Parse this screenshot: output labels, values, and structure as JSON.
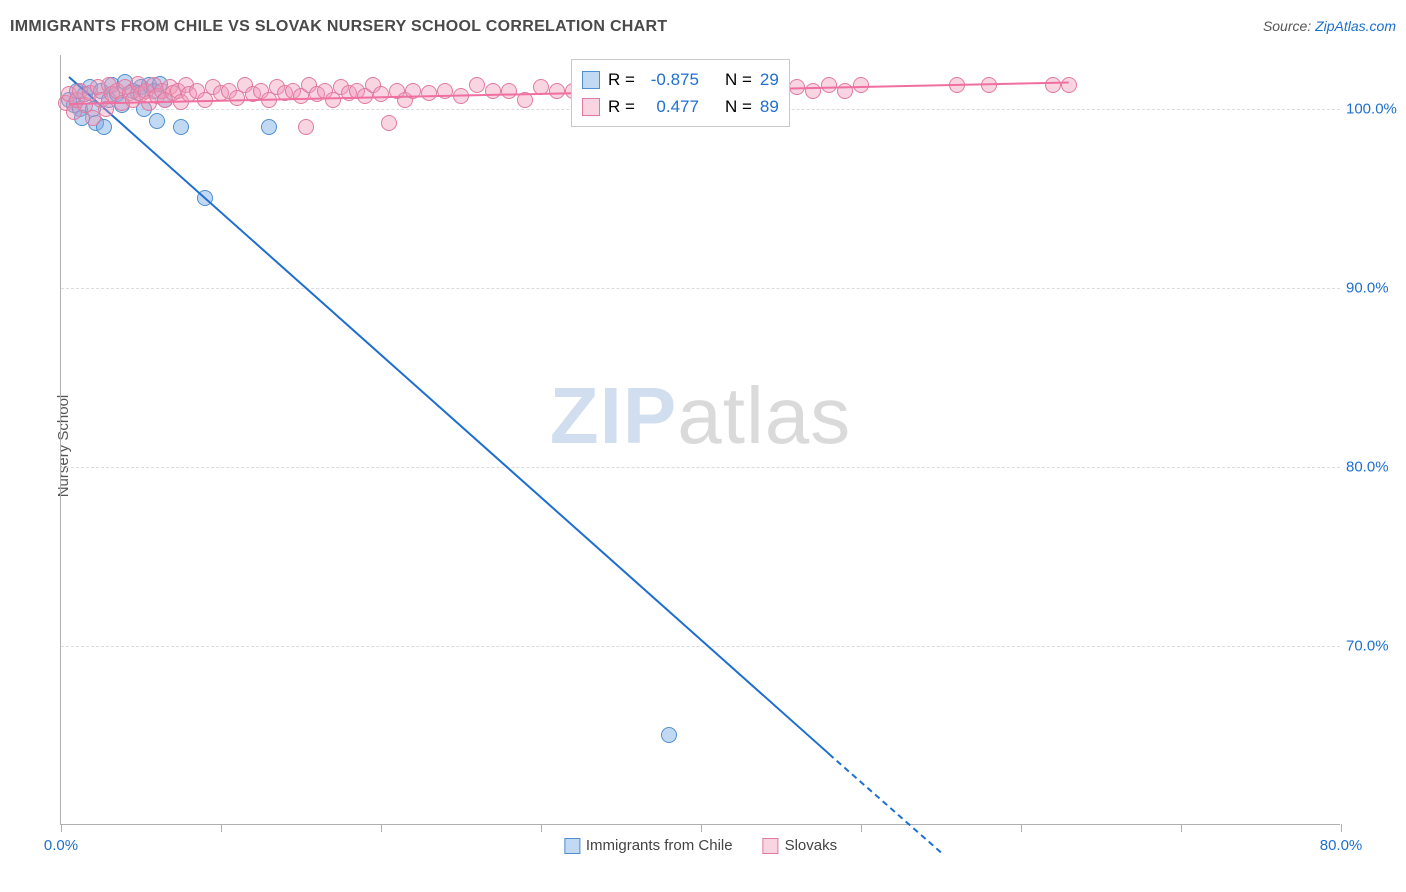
{
  "title": "IMMIGRANTS FROM CHILE VS SLOVAK NURSERY SCHOOL CORRELATION CHART",
  "source_prefix": "Source: ",
  "source_link": "ZipAtlas.com",
  "y_axis_label": "Nursery School",
  "watermark_a": "ZIP",
  "watermark_b": "atlas",
  "colors": {
    "blue_fill": "rgba(120,170,230,0.45)",
    "blue_stroke": "#4f8ecf",
    "blue_line": "#1f6fd0",
    "pink_fill": "rgba(240,150,180,0.4)",
    "pink_stroke": "#e07aa0",
    "pink_line": "#ef6fa0",
    "tick_blue": "#1f6fd0",
    "grid": "#dcdcdc",
    "bg": "#ffffff"
  },
  "chart": {
    "type": "scatter",
    "xlim": [
      0,
      80
    ],
    "ylim": [
      60,
      103
    ],
    "marker_radius": 8,
    "x_ticks": [
      0,
      10,
      20,
      30,
      40,
      50,
      60,
      70,
      80
    ],
    "x_tick_labels": {
      "0": "0.0%",
      "80": "80.0%"
    },
    "y_ticks": [
      70,
      80,
      90,
      100
    ],
    "y_tick_labels": {
      "70": "70.0%",
      "80": "80.0%",
      "90": "90.0%",
      "100": "100.0%"
    },
    "series": [
      {
        "name": "Immigrants from Chile",
        "key": "chile",
        "R": "-0.875",
        "N": "29",
        "points": [
          [
            0.5,
            100.5
          ],
          [
            0.8,
            100.2
          ],
          [
            1.0,
            101.0
          ],
          [
            1.2,
            100.0
          ],
          [
            1.3,
            99.5
          ],
          [
            1.5,
            100.8
          ],
          [
            1.8,
            101.2
          ],
          [
            2.0,
            100.0
          ],
          [
            2.2,
            99.2
          ],
          [
            2.5,
            101.0
          ],
          [
            2.7,
            99.0
          ],
          [
            3.0,
            100.5
          ],
          [
            3.2,
            101.3
          ],
          [
            3.5,
            100.8
          ],
          [
            3.8,
            100.2
          ],
          [
            4.0,
            101.5
          ],
          [
            4.5,
            101.0
          ],
          [
            5.0,
            101.2
          ],
          [
            5.2,
            100.0
          ],
          [
            5.5,
            101.3
          ],
          [
            5.8,
            101.0
          ],
          [
            6.0,
            99.3
          ],
          [
            6.2,
            101.4
          ],
          [
            6.5,
            100.5
          ],
          [
            7.5,
            99.0
          ],
          [
            9.0,
            95.0
          ],
          [
            13.0,
            99.0
          ],
          [
            38.0,
            65.0
          ],
          [
            4.8,
            100.9
          ]
        ],
        "trend": {
          "x1": 0.5,
          "y1": 101.8,
          "x2": 48,
          "y2": 64,
          "dash_x2": 55,
          "dash_y2": 58.5
        }
      },
      {
        "name": "Slovaks",
        "key": "slovaks",
        "R": "0.477",
        "N": "89",
        "points": [
          [
            0.3,
            100.3
          ],
          [
            0.5,
            100.8
          ],
          [
            0.8,
            99.8
          ],
          [
            1.0,
            100.5
          ],
          [
            1.2,
            101.0
          ],
          [
            1.5,
            100.2
          ],
          [
            1.8,
            100.9
          ],
          [
            2.0,
            99.5
          ],
          [
            2.3,
            101.2
          ],
          [
            2.5,
            100.5
          ],
          [
            2.8,
            100.0
          ],
          [
            3.0,
            101.3
          ],
          [
            3.2,
            100.8
          ],
          [
            3.5,
            101.0
          ],
          [
            3.8,
            100.3
          ],
          [
            4.0,
            101.2
          ],
          [
            4.3,
            100.9
          ],
          [
            4.5,
            100.5
          ],
          [
            4.8,
            101.4
          ],
          [
            5.0,
            100.8
          ],
          [
            5.3,
            101.0
          ],
          [
            5.5,
            100.3
          ],
          [
            5.8,
            101.3
          ],
          [
            6.0,
            100.7
          ],
          [
            6.3,
            101.0
          ],
          [
            6.5,
            100.5
          ],
          [
            6.8,
            101.2
          ],
          [
            7.0,
            100.9
          ],
          [
            7.3,
            101.0
          ],
          [
            7.5,
            100.4
          ],
          [
            7.8,
            101.3
          ],
          [
            8.0,
            100.8
          ],
          [
            8.5,
            101.0
          ],
          [
            9.0,
            100.5
          ],
          [
            9.5,
            101.2
          ],
          [
            10.0,
            100.9
          ],
          [
            10.5,
            101.0
          ],
          [
            11.0,
            100.6
          ],
          [
            11.5,
            101.3
          ],
          [
            12.0,
            100.8
          ],
          [
            12.5,
            101.0
          ],
          [
            13.0,
            100.5
          ],
          [
            13.5,
            101.2
          ],
          [
            14.0,
            100.9
          ],
          [
            14.5,
            101.0
          ],
          [
            15.0,
            100.7
          ],
          [
            15.3,
            99.0
          ],
          [
            15.5,
            101.3
          ],
          [
            16.0,
            100.8
          ],
          [
            16.5,
            101.0
          ],
          [
            17.0,
            100.5
          ],
          [
            17.5,
            101.2
          ],
          [
            18.0,
            100.9
          ],
          [
            18.5,
            101.0
          ],
          [
            19.0,
            100.7
          ],
          [
            19.5,
            101.3
          ],
          [
            20.0,
            100.8
          ],
          [
            20.5,
            99.2
          ],
          [
            21.0,
            101.0
          ],
          [
            21.5,
            100.5
          ],
          [
            22.0,
            101.0
          ],
          [
            23.0,
            100.9
          ],
          [
            24.0,
            101.0
          ],
          [
            25.0,
            100.7
          ],
          [
            26.0,
            101.3
          ],
          [
            27.0,
            101.0
          ],
          [
            28.0,
            101.0
          ],
          [
            29.0,
            100.5
          ],
          [
            30.0,
            101.2
          ],
          [
            31.0,
            101.0
          ],
          [
            32.0,
            101.0
          ],
          [
            33.0,
            101.3
          ],
          [
            34.0,
            101.0
          ],
          [
            35.0,
            101.0
          ],
          [
            36.0,
            101.2
          ],
          [
            37.0,
            101.0
          ],
          [
            38.0,
            101.0
          ],
          [
            40.0,
            101.0
          ],
          [
            42.0,
            101.3
          ],
          [
            44.0,
            101.0
          ],
          [
            46.0,
            101.2
          ],
          [
            47.0,
            101.0
          ],
          [
            48.0,
            101.3
          ],
          [
            49.0,
            101.0
          ],
          [
            50.0,
            101.3
          ],
          [
            56.0,
            101.3
          ],
          [
            58.0,
            101.3
          ],
          [
            62.0,
            101.3
          ],
          [
            63.0,
            101.3
          ]
        ],
        "trend": {
          "x1": 0.5,
          "y1": 100.3,
          "x2": 63,
          "y2": 101.5
        }
      }
    ]
  },
  "stat_box": {
    "r_label": "R =",
    "n_label": "N ="
  },
  "legend": {
    "series1": "Immigrants from Chile",
    "series2": "Slovaks"
  }
}
